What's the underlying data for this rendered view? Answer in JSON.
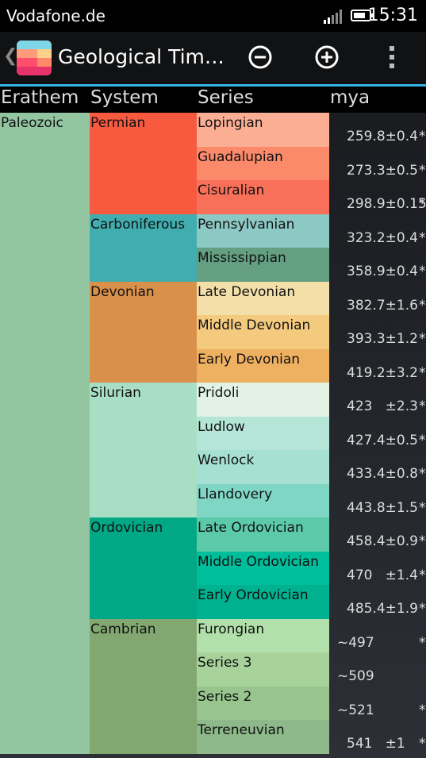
{
  "status_bar": {
    "carrier": "Vodafone.de",
    "time": "15:31"
  },
  "action_bar": {
    "title": "Geological Tim…",
    "zoom_out_icon": "minus-circle-icon",
    "zoom_in_icon": "plus-circle-icon",
    "overflow_icon": "vertical-ellipsis-icon"
  },
  "columns": {
    "erathem": "Erathem",
    "system": "System",
    "series": "Series",
    "mya": "mya"
  },
  "erathem": {
    "label": "Paleozoic",
    "color": "#93c6a0"
  },
  "systems": [
    {
      "label": "Permian",
      "color": "#f85a40"
    },
    {
      "label": "Carboniferous",
      "color": "#41adaf"
    },
    {
      "label": "Devonian",
      "color": "#d9904b"
    },
    {
      "label": "Silurian",
      "color": "#a8dec4"
    },
    {
      "label": "Ordovician",
      "color": "#00a885"
    },
    {
      "label": "Cambrian",
      "color": "#82a771"
    }
  ],
  "series": [
    {
      "label": "Lopingian",
      "color": "#fbae93"
    },
    {
      "label": "Guadalupian",
      "color": "#fb8a6b"
    },
    {
      "label": "Cisuralian",
      "color": "#f8705a"
    },
    {
      "label": "Pennsylvanian",
      "color": "#8cc8c4"
    },
    {
      "label": "Mississippian",
      "color": "#649f81"
    },
    {
      "label": "Late Devonian",
      "color": "#f2e0a8"
    },
    {
      "label": "Middle Devonian",
      "color": "#f4ca7f"
    },
    {
      "label": "Early Devonian",
      "color": "#eeb061"
    },
    {
      "label": "Pridoli",
      "color": "#e2f2e5"
    },
    {
      "label": "Ludlow",
      "color": "#b5e5d7"
    },
    {
      "label": "Wenlock",
      "color": "#a5e0d2"
    },
    {
      "label": "Llandovery",
      "color": "#7fd6c4"
    },
    {
      "label": "Late Ordovician",
      "color": "#5ccaa9"
    },
    {
      "label": "Middle Ordovician",
      "color": "#00be9c"
    },
    {
      "label": "Early Ordovician",
      "color": "#00b28f"
    },
    {
      "label": "Furongian",
      "color": "#b2e0ab"
    },
    {
      "label": "Series 3",
      "color": "#a7d39b"
    },
    {
      "label": "Series 2",
      "color": "#98c58e"
    },
    {
      "label": "Terreneuvian",
      "color": "#8eb98a"
    }
  ],
  "mya_values": [
    {
      "value": "259.8±0.4",
      "star": "*"
    },
    {
      "value": "273.3±0.5",
      "star": "*"
    },
    {
      "value": "298.9±0.15",
      "star": "*"
    },
    {
      "value": "323.2±0.4",
      "star": "*"
    },
    {
      "value": "358.9±0.4",
      "star": "*"
    },
    {
      "value": "382.7±1.6",
      "star": "*"
    },
    {
      "value": "393.3±1.2",
      "star": "*"
    },
    {
      "value": "419.2±3.2",
      "star": "*"
    },
    {
      "value": "423   ±2.3",
      "star": "*"
    },
    {
      "value": "427.4±0.5",
      "star": "*"
    },
    {
      "value": "433.4±0.8",
      "star": "*"
    },
    {
      "value": "443.8±1.5",
      "star": "*"
    },
    {
      "value": "458.4±0.9",
      "star": "*"
    },
    {
      "value": "470   ±1.4",
      "star": "*"
    },
    {
      "value": "485.4±1.9",
      "star": "*"
    },
    {
      "value": "~497",
      "star": "*"
    },
    {
      "value": "~509",
      "star": ""
    },
    {
      "value": "~521",
      "star": "*"
    },
    {
      "value": "541   ±1",
      "star": "*"
    }
  ]
}
